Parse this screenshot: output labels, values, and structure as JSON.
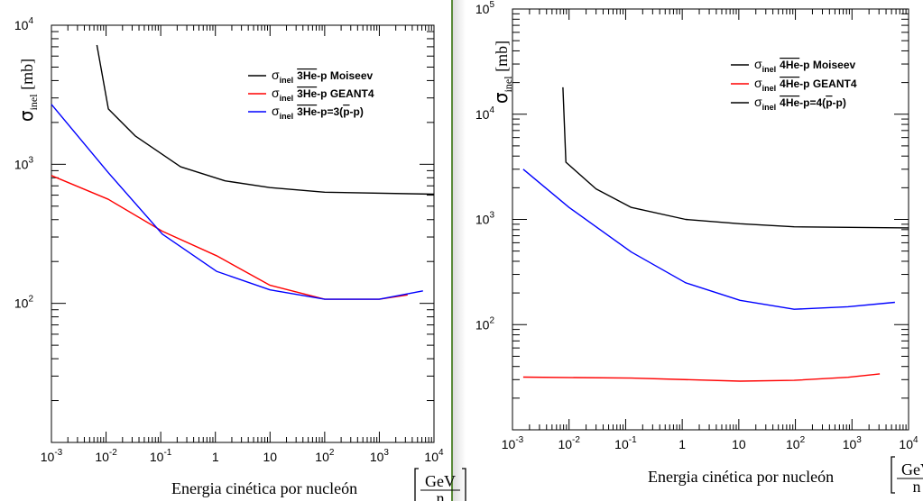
{
  "chart_data": [
    {
      "type": "line",
      "xlabel": "Energia cinética por nucleón [GeV/n]",
      "xlabel_text": "Energia cinética por nucleón",
      "xunit_num": "GeV",
      "xunit_den": "n",
      "ylabel_symbol": "σ",
      "ylabel_sub": "inel",
      "ylabel_unit": "[mb]",
      "xscale": "log",
      "yscale": "log",
      "xlim": [
        0.001,
        10000
      ],
      "ylim": [
        10,
        10000
      ],
      "xticks": [
        "10^-3",
        "10^-2",
        "10^-1",
        "1",
        "10",
        "10^2",
        "10^3",
        "10^4"
      ],
      "yticks": [
        "10^2",
        "10^3",
        "10^4"
      ],
      "legend_position": "top-right",
      "series": [
        {
          "name": "σinel 3He-p Moiseev",
          "legend_parts": [
            "σ",
            "inel",
            "3He",
            "-p Moiseev"
          ],
          "color": "#000000",
          "x": [
            0.0068,
            0.011,
            0.034,
            0.23,
            1.5,
            10,
            100,
            10000
          ],
          "y": [
            7200,
            2500,
            1600,
            960,
            760,
            680,
            630,
            610
          ]
        },
        {
          "name": "σinel 3He-p GEANT4",
          "legend_parts": [
            "σ",
            "inel",
            "3He",
            "-p GEANT4"
          ],
          "color": "#ff0000",
          "x": [
            0.001,
            0.011,
            0.107,
            1.05,
            10,
            100,
            1000,
            3300
          ],
          "y": [
            830,
            560,
            330,
            220,
            135,
            107,
            107,
            115
          ]
        },
        {
          "name": "σinel 3He-p=3(p-p)",
          "legend_parts": [
            "σ",
            "inel",
            "3He",
            "-p=3(",
            "p",
            "-p)"
          ],
          "color": "#0000ff",
          "x": [
            0.001,
            0.011,
            0.107,
            1.05,
            10,
            100,
            1000,
            6300
          ],
          "y": [
            2700,
            870,
            315,
            170,
            125,
            107,
            107,
            123
          ]
        }
      ]
    },
    {
      "type": "line",
      "xlabel": "Energia cinética por nucleón [GeV/n]",
      "xlabel_text": "Energia cinética por nucleón",
      "xunit_num": "GeV",
      "xunit_den": "n",
      "ylabel_symbol": "σ",
      "ylabel_sub": "inel",
      "ylabel_unit": "[mb]",
      "xscale": "log",
      "yscale": "log",
      "xlim": [
        0.001,
        10000
      ],
      "ylim": [
        10,
        100000
      ],
      "xticks": [
        "10^-3",
        "10^-2",
        "10^-1",
        "1",
        "10",
        "10^2",
        "10^3",
        "10^4"
      ],
      "yticks": [
        "10^2",
        "10^3",
        "10^4",
        "10^5"
      ],
      "legend_position": "top-right",
      "series": [
        {
          "name": "σinel 4He-p Moiseev",
          "legend_parts": [
            "σ",
            "inel",
            "4He",
            "-p Moiseev"
          ],
          "color": "#000000",
          "legend_color": "#000000",
          "x": [
            0.0078,
            0.0088,
            0.03,
            0.126,
            1.15,
            10.5,
            95,
            10000
          ],
          "y": [
            18000,
            3500,
            1950,
            1300,
            1000,
            910,
            850,
            830
          ]
        },
        {
          "name": "σinel 4He-p GEANT4",
          "legend_parts": [
            "σ",
            "inel",
            "4He",
            "-p GEANT4"
          ],
          "color": "#ff0000",
          "legend_color": "#ff0000",
          "x": [
            0.00155,
            0.126,
            10.5,
            95,
            850,
            3100
          ],
          "y": [
            31.7,
            31,
            29,
            29.5,
            31.6,
            34
          ]
        },
        {
          "name": "σinel 4He-p=4(p-p)",
          "legend_parts": [
            "σ",
            "inel",
            "4He",
            "-p=4(",
            "p",
            "-p)"
          ],
          "color": "#0000ff",
          "legend_color": "#000000",
          "x": [
            0.00155,
            0.01,
            0.126,
            1.15,
            10.5,
            95,
            850,
            5750
          ],
          "y": [
            3000,
            1300,
            490,
            250,
            170,
            140,
            148,
            163
          ]
        }
      ]
    }
  ]
}
